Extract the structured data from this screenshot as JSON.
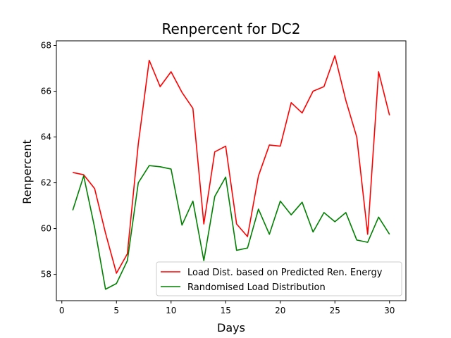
{
  "chart_data": {
    "type": "line",
    "title": "Renpercent for DC2",
    "xlabel": "Days",
    "ylabel": "Renpercent",
    "xlim": [
      -0.5,
      31.5
    ],
    "ylim": [
      56.85,
      68.2
    ],
    "xticks": [
      0,
      5,
      10,
      15,
      20,
      25,
      30
    ],
    "yticks": [
      58,
      60,
      62,
      64,
      66,
      68
    ],
    "grid": false,
    "legend_position": "lower-right",
    "x": [
      1,
      2,
      3,
      4,
      5,
      6,
      7,
      8,
      9,
      10,
      11,
      12,
      13,
      14,
      15,
      16,
      17,
      18,
      19,
      20,
      21,
      22,
      23,
      24,
      25,
      26,
      27,
      28,
      29,
      30
    ],
    "series": [
      {
        "name": "Load Dist. based on Predicted Ren. Energy",
        "color": "#ff0000",
        "values": [
          62.45,
          62.35,
          61.75,
          59.8,
          58.05,
          58.9,
          63.7,
          67.35,
          66.2,
          66.85,
          65.95,
          65.25,
          60.2,
          63.35,
          63.6,
          60.2,
          59.65,
          62.3,
          63.65,
          63.6,
          65.5,
          65.05,
          66.0,
          66.2,
          67.55,
          65.6,
          64.0,
          59.75,
          66.85,
          64.95
        ]
      },
      {
        "name": "Randomised Load Distribution",
        "color": "#008000",
        "values": [
          60.8,
          62.3,
          60.05,
          57.35,
          57.6,
          58.6,
          62.0,
          62.75,
          62.7,
          62.6,
          60.15,
          61.2,
          58.6,
          61.4,
          62.25,
          59.05,
          59.15,
          60.85,
          59.75,
          61.2,
          60.6,
          61.15,
          59.85,
          60.7,
          60.3,
          60.7,
          59.5,
          59.4,
          60.5,
          59.75
        ]
      }
    ]
  }
}
